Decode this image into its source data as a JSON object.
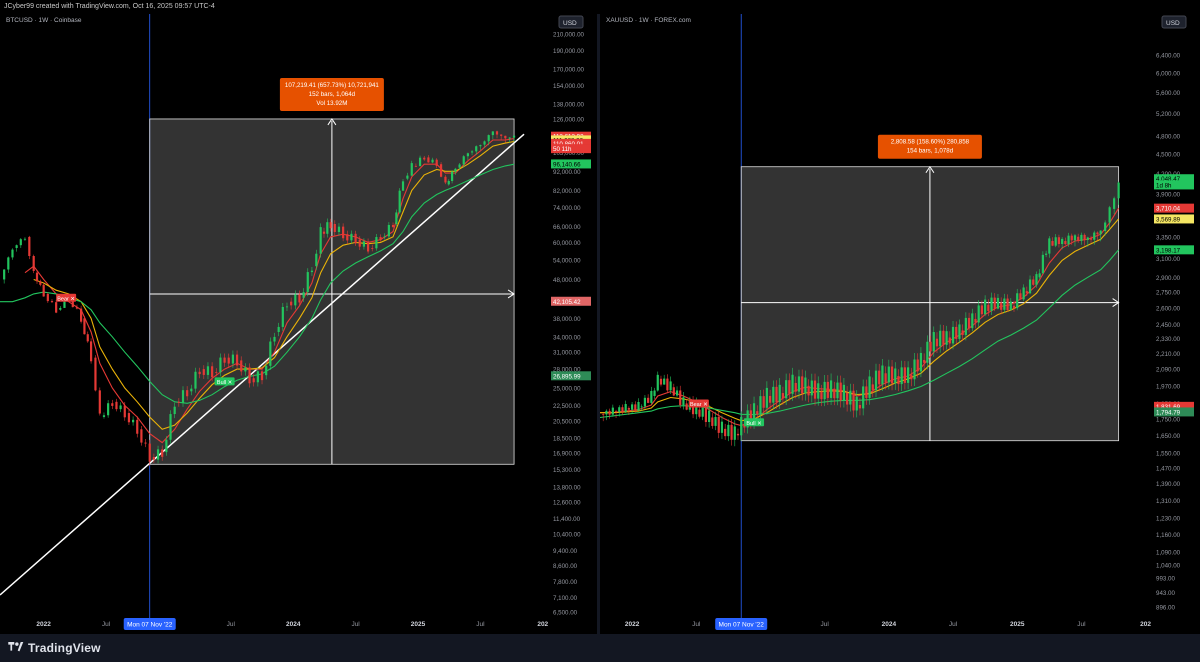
{
  "header": {
    "credit": "JCyber99 created with TradingView.com, Oct 16, 2025 09:57 UTC-4"
  },
  "footer": {
    "brand": "TradingView"
  },
  "chart_data": [
    {
      "type": "line",
      "symbol_label": "BTCUSD · 1W · Coinbase",
      "currency": "USD",
      "scale": "log",
      "ylim": [
        6500,
        210000
      ],
      "y_ticks": [
        "210,000.00",
        "190,000.00",
        "170,000.00",
        "154,000.00",
        "138,000.00",
        "126,000.00",
        "114,000.00",
        "103,000.00",
        "92,000.00",
        "82,000.00",
        "74,000.00",
        "66,000.00",
        "60,000.00",
        "54,000.00",
        "48,000.00",
        "42,000.00",
        "38,000.00",
        "34,000.00",
        "31,000.00",
        "28,000.00",
        "25,000.00",
        "22,500.00",
        "20,500.00",
        "18,500.00",
        "16,900.00",
        "15,300.00",
        "13,800.00",
        "12,600.00",
        "11,400.00",
        "10,400.00",
        "9,400.00",
        "8,600.00",
        "7,800.00",
        "7,100.00",
        "6,500.00"
      ],
      "x_ticks": [
        "2022",
        "Jul",
        "Jul",
        "2024",
        "Jul",
        "2025",
        "Jul",
        "202"
      ],
      "x_tick_pos": [
        2022.0,
        2022.5,
        2023.5,
        2024.0,
        2024.5,
        2025.0,
        2025.5,
        2026.0
      ],
      "xlim": [
        2021.65,
        2026.05
      ],
      "marker_date": "Mon 07 Nov '22",
      "marker_x": 2022.85,
      "price_labels": [
        {
          "text": "113,612.92",
          "y": 113600,
          "color": "#e53935"
        },
        {
          "text": "111,088.33",
          "y": 111088,
          "color": "#f5e663"
        },
        {
          "text": "110,860.01",
          "y": 108800,
          "color": "#e53935"
        },
        {
          "text": "50 11h",
          "y": 105400,
          "color": "#e53935"
        },
        {
          "text": "96,140.66",
          "y": 96140,
          "color": "#22c55e"
        },
        {
          "text": "42,105.42",
          "y": 42105,
          "color": "#e06666"
        },
        {
          "text": "26,895.99",
          "y": 26896,
          "color": "#2e8b57"
        }
      ],
      "measure_box": {
        "x0": 2022.85,
        "x1": 2025.77,
        "y0": 15800,
        "y1": 126000,
        "mid_y": 44000
      },
      "measure_label": [
        "107,219.41 (657.73%) 10,721,941",
        "152 bars, 1,064d",
        "Vol 13.92M"
      ],
      "trendline": {
        "from": [
          2021.65,
          7200
        ],
        "to": [
          2025.85,
          115000
        ]
      },
      "signals": [
        {
          "text": "Bear",
          "x": 2022.18,
          "y": 43000,
          "color": "#e53935"
        },
        {
          "text": "Bull",
          "x": 2023.45,
          "y": 26000,
          "color": "#22c55e"
        }
      ],
      "price_series": {
        "x": [
          2021.65,
          2021.75,
          2021.85,
          2021.92,
          2022.0,
          2022.1,
          2022.2,
          2022.3,
          2022.38,
          2022.45,
          2022.55,
          2022.65,
          2022.75,
          2022.85,
          2022.95,
          2023.05,
          2023.15,
          2023.25,
          2023.35,
          2023.45,
          2023.55,
          2023.65,
          2023.75,
          2023.85,
          2023.95,
          2024.05,
          2024.15,
          2024.22,
          2024.3,
          2024.4,
          2024.5,
          2024.6,
          2024.7,
          2024.8,
          2024.88,
          2024.95,
          2025.05,
          2025.15,
          2025.22,
          2025.3,
          2025.4,
          2025.5,
          2025.6,
          2025.7,
          2025.77
        ],
        "y": [
          48000,
          58000,
          62000,
          50000,
          44000,
          40000,
          43000,
          38000,
          30000,
          21000,
          23000,
          21500,
          19500,
          16500,
          17000,
          23000,
          24500,
          28000,
          27500,
          30000,
          29500,
          26500,
          27000,
          35000,
          42000,
          43000,
          52000,
          64000,
          67000,
          63000,
          61000,
          58000,
          62000,
          67000,
          88000,
          95000,
          100000,
          96000,
          85000,
          94000,
          103000,
          108000,
          117000,
          112000,
          114000
        ]
      },
      "ma_series": [
        {
          "color": "#e53935",
          "y": [
            null,
            null,
            50000,
            52000,
            48000,
            44000,
            42000,
            40000,
            35000,
            29000,
            25000,
            22500,
            21000,
            19000,
            18000,
            19500,
            22000,
            24500,
            26500,
            28000,
            29000,
            28000,
            28000,
            31000,
            37000,
            41000,
            47000,
            56000,
            62000,
            63000,
            62000,
            60000,
            61000,
            64000,
            78000,
            89000,
            96000,
            96000,
            91000,
            91000,
            98000,
            104000,
            111000,
            111000,
            112000
          ]
        },
        {
          "color": "#eab308",
          "y": [
            null,
            null,
            null,
            48000,
            47000,
            45000,
            44000,
            42000,
            38000,
            32000,
            28000,
            25000,
            23000,
            21000,
            19500,
            20000,
            21500,
            23500,
            25500,
            27000,
            28000,
            28000,
            28200,
            30000,
            34000,
            38000,
            43000,
            50000,
            56000,
            59000,
            60000,
            59500,
            60000,
            62000,
            72000,
            82000,
            90000,
            93000,
            92000,
            92000,
            96000,
            101000,
            107000,
            109000,
            110000
          ]
        },
        {
          "color": "#22c55e",
          "y": [
            42000,
            42000,
            43000,
            44000,
            44500,
            44000,
            43000,
            42000,
            40000,
            37000,
            34000,
            31000,
            28500,
            26000,
            24000,
            23000,
            22800,
            23200,
            24000,
            25200,
            26200,
            26800,
            27200,
            28500,
            31000,
            34000,
            38000,
            42500,
            47000,
            50500,
            53000,
            55000,
            57000,
            59500,
            64000,
            70000,
            76000,
            80000,
            82000,
            84000,
            87000,
            90000,
            93000,
            95000,
            96000
          ]
        }
      ]
    },
    {
      "type": "line",
      "symbol_label": "XAUUSD · 1W · FOREX.com",
      "currency": "USD",
      "scale": "log",
      "ylim": [
        880,
        6900
      ],
      "y_ticks": [
        "6,400.00",
        "6,000.00",
        "5,600.00",
        "5,200.00",
        "4,800.00",
        "4,500.00",
        "4,200.00",
        "3,900.00",
        "3,600.00",
        "3,350.00",
        "3,100.00",
        "2,900.00",
        "2,750.00",
        "2,600.00",
        "2,450.00",
        "2,330.00",
        "2,210.00",
        "2,090.00",
        "1,970.00",
        "1,850.00",
        "1,750.00",
        "1,650.00",
        "1,550.00",
        "1,470.00",
        "1,390.00",
        "1,310.00",
        "1,230.00",
        "1,160.00",
        "1,090.00",
        "1,040.00",
        "993.00",
        "943.00",
        "896.00"
      ],
      "x_ticks": [
        "2022",
        "Jul",
        "Jul",
        "2024",
        "Jul",
        "2025",
        "Jul",
        "202"
      ],
      "x_tick_pos": [
        2022.0,
        2022.5,
        2023.5,
        2024.0,
        2024.5,
        2025.0,
        2025.5,
        2026.0
      ],
      "xlim": [
        2021.75,
        2026.05
      ],
      "marker_date": "Mon 07 Nov '22",
      "marker_x": 2022.85,
      "price_labels": [
        {
          "text": "4,048.47",
          "y": 4120,
          "color": "#22c55e"
        },
        {
          "text": "1d 8h",
          "y": 4030,
          "color": "#22c55e"
        },
        {
          "text": "3,710.04",
          "y": 3710,
          "color": "#e53935"
        },
        {
          "text": "3,569.89",
          "y": 3570,
          "color": "#f5e663"
        },
        {
          "text": "3,198.17",
          "y": 3198,
          "color": "#22c55e"
        },
        {
          "text": "1,831.69",
          "y": 1831,
          "color": "#e53935"
        },
        {
          "text": "1,794.79",
          "y": 1795,
          "color": "#2e8b57"
        }
      ],
      "measure_box": {
        "x0": 2022.85,
        "x1": 2025.79,
        "y0": 1620,
        "y1": 4300,
        "mid_y": 2650
      },
      "measure_label": [
        "2,808.58 (158.60%) 280,858",
        "154 bars, 1,078d"
      ],
      "trendline": null,
      "signals": [
        {
          "text": "Bear",
          "x": 2022.52,
          "y": 1850,
          "color": "#e53935"
        },
        {
          "text": "Bull",
          "x": 2022.95,
          "y": 1730,
          "color": "#22c55e"
        }
      ],
      "price_series": {
        "x": [
          2021.75,
          2021.85,
          2021.95,
          2022.05,
          2022.15,
          2022.2,
          2022.3,
          2022.4,
          2022.5,
          2022.6,
          2022.7,
          2022.8,
          2022.85,
          2022.95,
          2023.05,
          2023.15,
          2023.25,
          2023.35,
          2023.45,
          2023.55,
          2023.65,
          2023.75,
          2023.85,
          2023.95,
          2024.05,
          2024.15,
          2024.25,
          2024.35,
          2024.45,
          2024.55,
          2024.65,
          2024.75,
          2024.85,
          2024.95,
          2025.05,
          2025.15,
          2025.25,
          2025.35,
          2025.45,
          2025.55,
          2025.65,
          2025.72,
          2025.79
        ],
        "y": [
          1780,
          1800,
          1820,
          1830,
          1900,
          2020,
          1960,
          1850,
          1810,
          1760,
          1690,
          1660,
          1720,
          1800,
          1900,
          1920,
          1990,
          1970,
          1930,
          1950,
          1920,
          1840,
          1980,
          2060,
          2040,
          2050,
          2160,
          2330,
          2340,
          2400,
          2500,
          2630,
          2650,
          2620,
          2760,
          2900,
          3300,
          3300,
          3350,
          3330,
          3420,
          3700,
          4048
        ]
      },
      "ma_series": [
        {
          "color": "#e53935",
          "y": [
            1790,
            1790,
            1800,
            1810,
            1840,
            1900,
            1930,
            1900,
            1860,
            1810,
            1760,
            1720,
            1710,
            1740,
            1810,
            1870,
            1930,
            1960,
            1950,
            1945,
            1935,
            1900,
            1920,
            1980,
            2020,
            2040,
            2100,
            2220,
            2300,
            2360,
            2440,
            2540,
            2610,
            2630,
            2700,
            2820,
            3050,
            3220,
            3300,
            3320,
            3380,
            3520,
            3710
          ]
        },
        {
          "color": "#eab308",
          "y": [
            1790,
            1790,
            1795,
            1800,
            1820,
            1860,
            1890,
            1880,
            1860,
            1830,
            1790,
            1755,
            1740,
            1750,
            1790,
            1840,
            1890,
            1920,
            1930,
            1935,
            1930,
            1910,
            1915,
            1950,
            1990,
            2020,
            2060,
            2150,
            2230,
            2300,
            2380,
            2470,
            2540,
            2580,
            2640,
            2740,
            2920,
            3080,
            3180,
            3250,
            3320,
            3440,
            3570
          ]
        },
        {
          "color": "#22c55e",
          "y": [
            1760,
            1770,
            1780,
            1790,
            1800,
            1815,
            1830,
            1835,
            1830,
            1820,
            1805,
            1790,
            1780,
            1778,
            1785,
            1800,
            1820,
            1840,
            1855,
            1865,
            1870,
            1870,
            1875,
            1890,
            1910,
            1935,
            1965,
            2010,
            2060,
            2110,
            2170,
            2240,
            2310,
            2360,
            2420,
            2490,
            2600,
            2720,
            2820,
            2900,
            2980,
            3080,
            3198
          ]
        }
      ]
    }
  ]
}
